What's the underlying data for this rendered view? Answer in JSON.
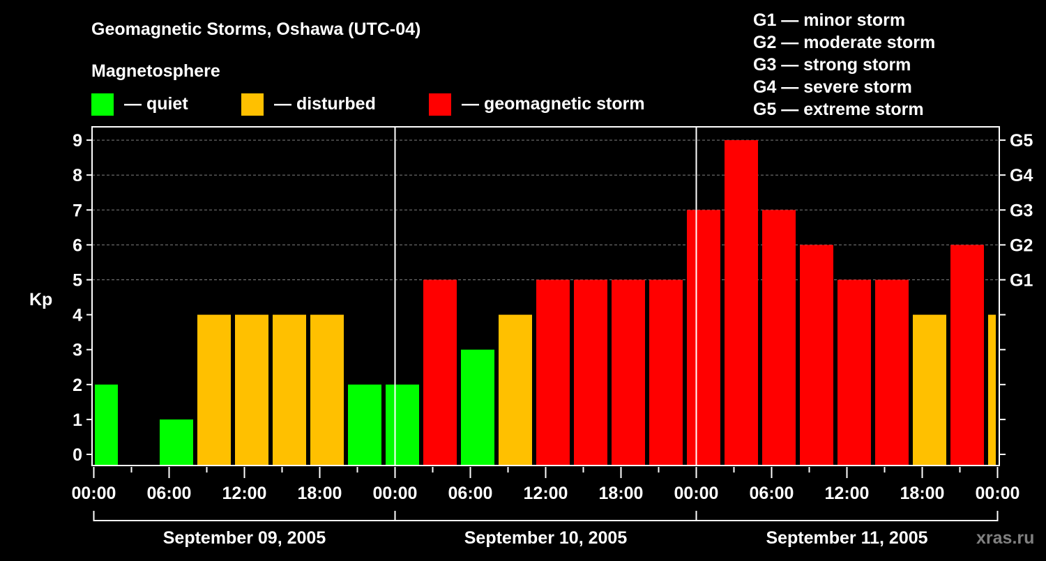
{
  "chart_data": {
    "type": "bar",
    "title": "Geomagnetic Storms, Oshawa (UTC-04)",
    "legend_title": "Magnetosphere",
    "legend": [
      {
        "label": "— quiet",
        "color": "#00ff00"
      },
      {
        "label": "— disturbed",
        "color": "#ffc000"
      },
      {
        "label": "— geomagnetic storm",
        "color": "#ff0000"
      }
    ],
    "storm_scale": [
      "G1 — minor storm",
      "G2 — moderate storm",
      "G3 — strong storm",
      "G4 — severe storm",
      "G5 — extreme storm"
    ],
    "ylabel": "Kp",
    "ylim": [
      0,
      9
    ],
    "y_ticks": [
      "0",
      "1",
      "2",
      "3",
      "4",
      "5",
      "6",
      "7",
      "8",
      "9"
    ],
    "right_ticks": [
      {
        "kp": 5,
        "label": "G1"
      },
      {
        "kp": 6,
        "label": "G2"
      },
      {
        "kp": 7,
        "label": "G3"
      },
      {
        "kp": 8,
        "label": "G4"
      },
      {
        "kp": 9,
        "label": "G5"
      }
    ],
    "x_ticks": [
      "00:00",
      "06:00",
      "12:00",
      "18:00",
      "00:00",
      "06:00",
      "12:00",
      "18:00",
      "00:00",
      "06:00",
      "12:00",
      "18:00",
      "00:00"
    ],
    "days": [
      "September 09, 2005",
      "September 10, 2005",
      "September 11, 2005"
    ],
    "interval_hours": 3,
    "first_interval_start_hour": -0.75,
    "values": [
      2,
      0,
      1,
      4,
      4,
      4,
      4,
      2,
      2,
      5,
      3,
      4,
      5,
      5,
      5,
      5,
      7,
      9,
      7,
      6,
      5,
      5,
      4,
      6,
      4
    ],
    "thresholds": {
      "disturbed": 4,
      "storm": 5
    },
    "grid": "dashed at Kp 5-9",
    "watermark": "xras.ru"
  }
}
